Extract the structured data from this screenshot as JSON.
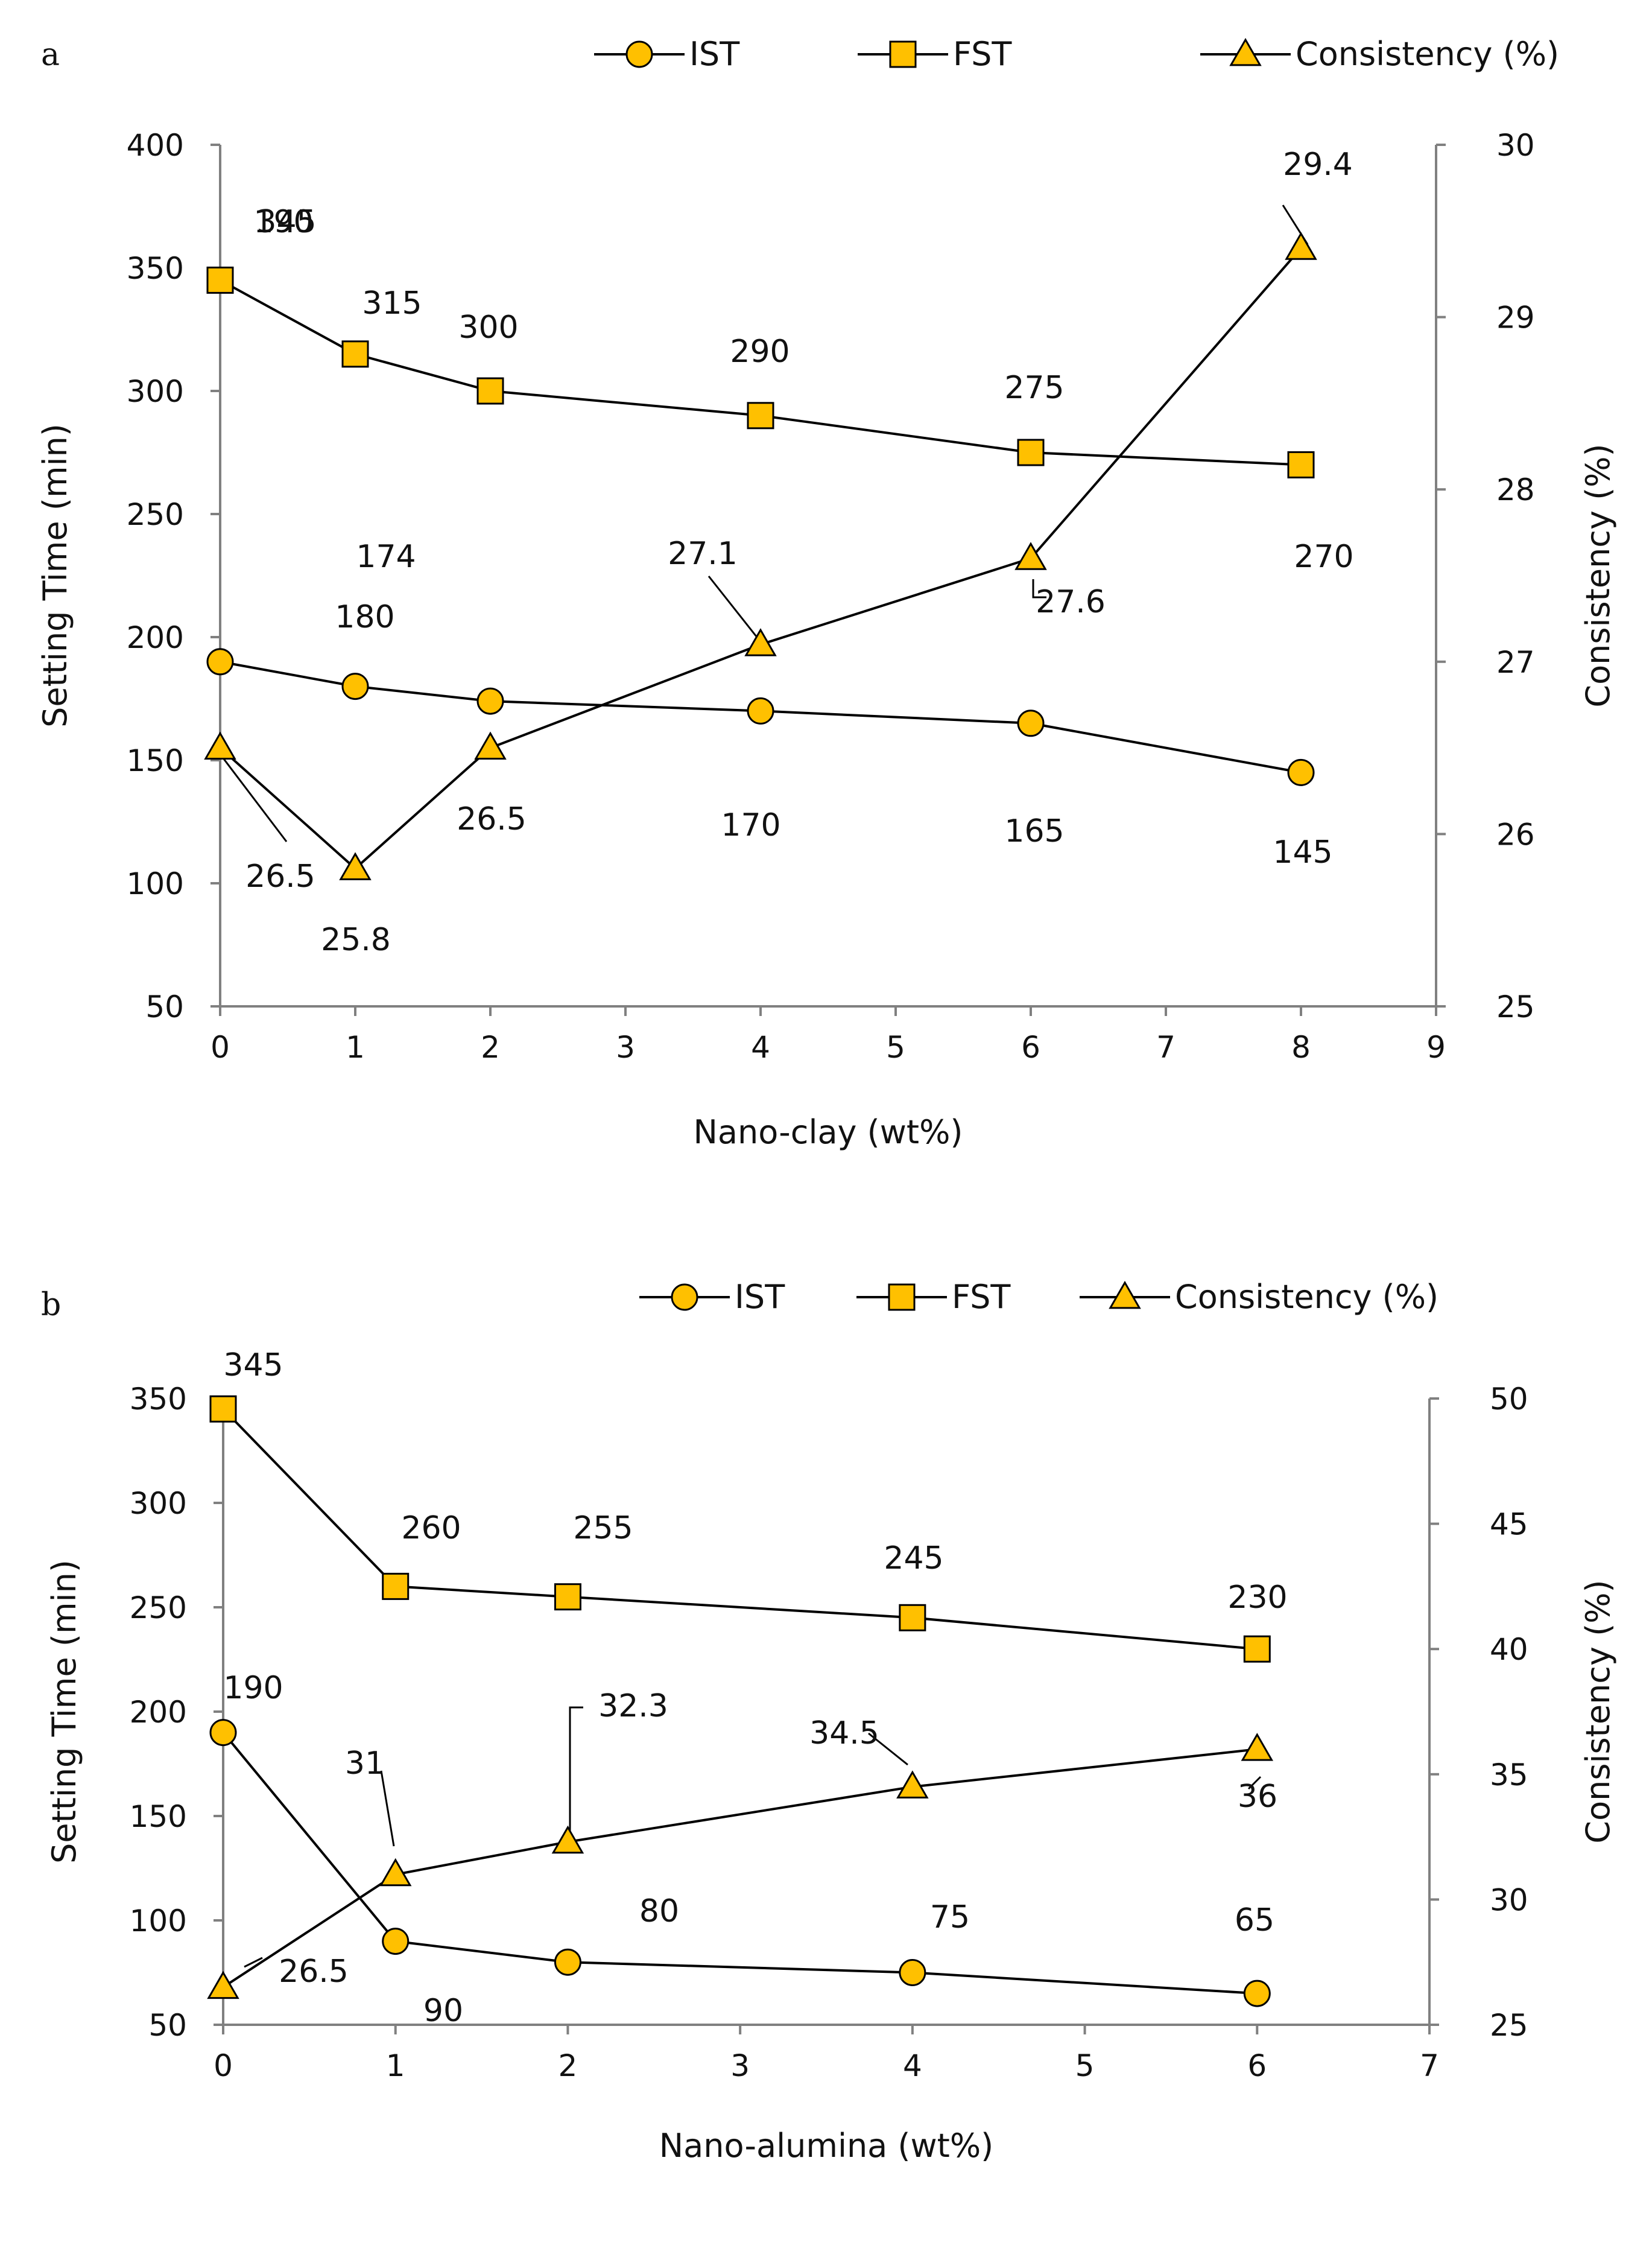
{
  "colors": {
    "marker_fill": "#FFC000",
    "marker_stroke": "#000000",
    "axis": "#808080",
    "line": "#000000"
  },
  "chart_data": [
    {
      "panel": "a",
      "type": "line",
      "x": [
        0,
        1,
        2,
        4,
        6,
        8
      ],
      "xlabel": "Nano-clay (wt%)",
      "ylabel": "Setting Time (min)",
      "y2label": "Consistency  (%)",
      "xlim": [
        0,
        9
      ],
      "ylim": [
        50,
        400
      ],
      "y2lim": [
        25,
        30
      ],
      "xticks": [
        "0",
        "1",
        "2",
        "3",
        "4",
        "5",
        "6",
        "7",
        "8",
        "9"
      ],
      "yticks": [
        "50",
        "100",
        "150",
        "200",
        "250",
        "300",
        "350",
        "400"
      ],
      "y2ticks": [
        "25",
        "26",
        "27",
        "28",
        "29",
        "30"
      ],
      "legend_position": "top",
      "series": [
        {
          "name": "IST",
          "axis": "left",
          "marker": "circle",
          "values": [
            190,
            180,
            174,
            170,
            165,
            145
          ],
          "labels": [
            "190",
            "180",
            "174",
            "170",
            "165",
            "145"
          ]
        },
        {
          "name": "FST",
          "axis": "left",
          "marker": "square",
          "values": [
            345,
            315,
            300,
            290,
            275,
            270
          ],
          "labels": [
            "345",
            "315",
            "300",
            "290",
            "275",
            "270"
          ]
        },
        {
          "name": "Consistency  (%)",
          "axis": "right",
          "marker": "triangle",
          "values": [
            26.5,
            25.8,
            26.5,
            27.1,
            27.6,
            29.4
          ],
          "labels": [
            "26.5",
            "25.8",
            "26.5",
            "27.1",
            "27.6",
            "29.4"
          ]
        }
      ]
    },
    {
      "panel": "b",
      "type": "line",
      "x": [
        0,
        1,
        2,
        4,
        6
      ],
      "xlabel": "Nano-alumina (wt%)",
      "ylabel": "Setting Time (min)",
      "y2label": "Consistency  (%)",
      "xlim": [
        0,
        7
      ],
      "ylim": [
        50,
        350
      ],
      "y2lim": [
        25,
        50
      ],
      "xticks": [
        "0",
        "1",
        "2",
        "3",
        "4",
        "5",
        "6",
        "7"
      ],
      "yticks": [
        "50",
        "100",
        "150",
        "200",
        "250",
        "300",
        "350"
      ],
      "y2ticks": [
        "25",
        "30",
        "35",
        "40",
        "45",
        "50"
      ],
      "legend_position": "top",
      "series": [
        {
          "name": "IST",
          "axis": "left",
          "marker": "circle",
          "values": [
            190,
            90,
            80,
            75,
            65
          ],
          "labels": [
            "190",
            "90",
            "80",
            "75",
            "65"
          ]
        },
        {
          "name": "FST",
          "axis": "left",
          "marker": "square",
          "values": [
            345,
            260,
            255,
            245,
            230
          ],
          "labels": [
            "345",
            "260",
            "255",
            "245",
            "230"
          ]
        },
        {
          "name": "Consistency  (%)",
          "axis": "right",
          "marker": "triangle",
          "values": [
            26.5,
            31,
            32.3,
            34.5,
            36
          ],
          "labels": [
            "26.5",
            "31",
            "32.3",
            "34.5",
            "36"
          ]
        }
      ]
    }
  ]
}
